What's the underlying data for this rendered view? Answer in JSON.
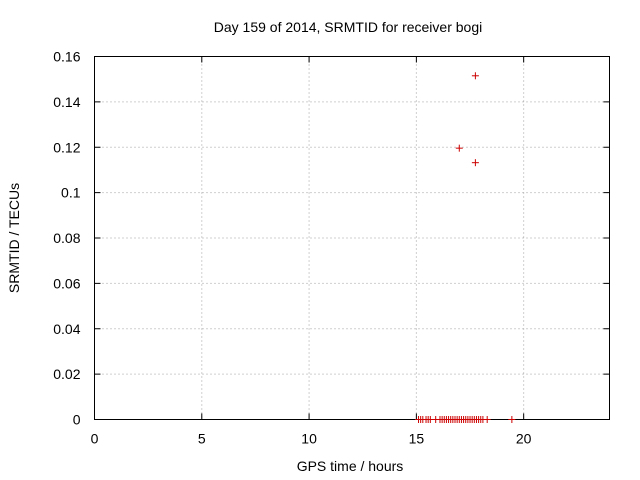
{
  "chart_data": {
    "type": "scatter",
    "title": "Day 159 of 2014, SRMTID for receiver bogi",
    "xlabel": "GPS time / hours",
    "ylabel": "SRMTID / TECUs",
    "xlim": [
      0,
      24
    ],
    "ylim": [
      0,
      0.16
    ],
    "xticks": [
      0,
      5,
      10,
      15,
      20
    ],
    "yticks": [
      0,
      0.02,
      0.04,
      0.06,
      0.08,
      0.1,
      0.12,
      0.14,
      0.16
    ],
    "grid": true,
    "marker": "plus",
    "color": "#cc0000",
    "series": [
      {
        "points": [
          [
            17.75,
            0.1515
          ],
          [
            17.0,
            0.1196
          ],
          [
            17.75,
            0.1132
          ],
          [
            15.1,
            0
          ],
          [
            15.2,
            0
          ],
          [
            15.3,
            0
          ],
          [
            15.45,
            0
          ],
          [
            15.55,
            0
          ],
          [
            15.65,
            0
          ],
          [
            15.9,
            0
          ],
          [
            16.1,
            0
          ],
          [
            16.2,
            0
          ],
          [
            16.3,
            0
          ],
          [
            16.4,
            0
          ],
          [
            16.5,
            0
          ],
          [
            16.6,
            0
          ],
          [
            16.7,
            0
          ],
          [
            16.8,
            0
          ],
          [
            16.9,
            0
          ],
          [
            17.0,
            0
          ],
          [
            17.1,
            0
          ],
          [
            17.2,
            0
          ],
          [
            17.3,
            0
          ],
          [
            17.4,
            0
          ],
          [
            17.5,
            0
          ],
          [
            17.6,
            0
          ],
          [
            17.7,
            0
          ],
          [
            17.8,
            0
          ],
          [
            17.9,
            0
          ],
          [
            18.0,
            0
          ],
          [
            18.1,
            0
          ],
          [
            18.3,
            0
          ],
          [
            19.45,
            0
          ]
        ]
      }
    ]
  }
}
